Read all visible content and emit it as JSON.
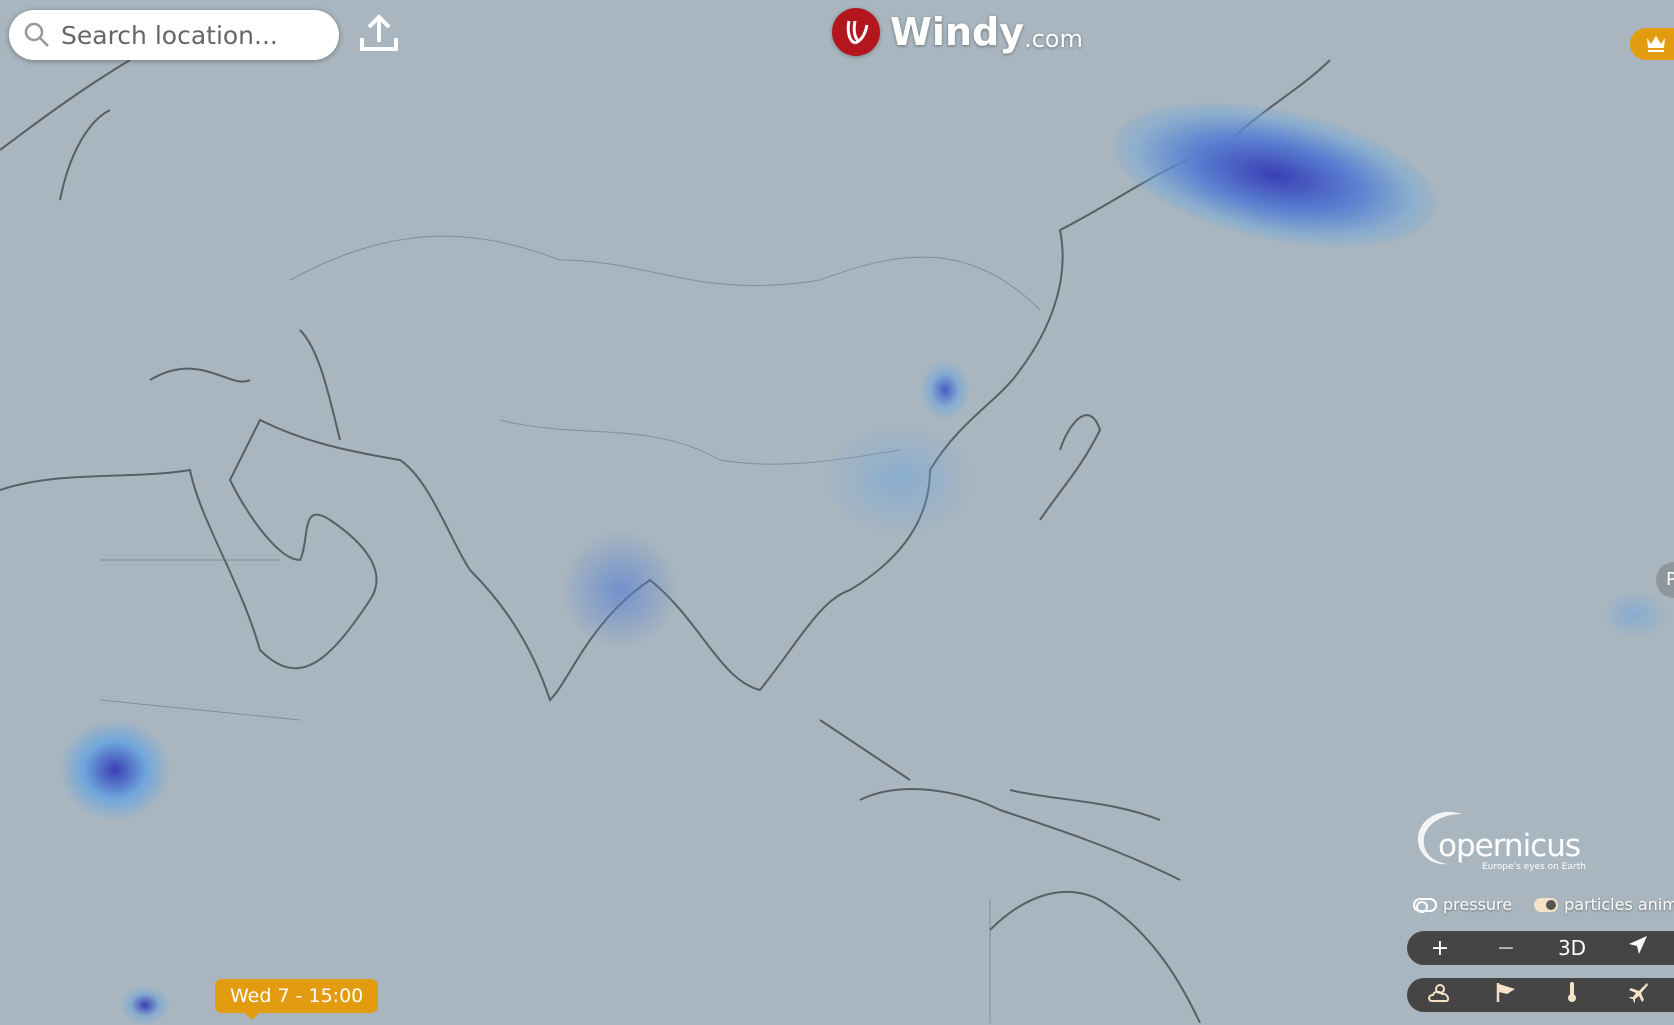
{
  "search": {
    "placeholder": "Search location...",
    "icon": "search-icon"
  },
  "header": {
    "brand": "Windy",
    "brand_suffix": ".com",
    "brand_color": "#b3161c"
  },
  "premium": {
    "icon": "crown-icon",
    "color": "#e39b0f"
  },
  "side_tab": {
    "label": "P"
  },
  "timeline": {
    "current": "Wed 7 - 15:00"
  },
  "attribution": {
    "name": "opernicus",
    "tagline": "Europe's eyes on Earth"
  },
  "toggles": [
    {
      "label": "pressure",
      "on": false
    },
    {
      "label": "particles animation",
      "on": true
    }
  ],
  "map_controls": {
    "zoom_in": "+",
    "zoom_out": "−",
    "three_d": "3D",
    "locate_icon": "location-arrow-icon"
  },
  "layer_buttons": [
    {
      "icon": "weather-cloud-sun-icon"
    },
    {
      "icon": "windsock-icon"
    },
    {
      "icon": "thermometer-icon"
    },
    {
      "icon": "airplane-icon"
    }
  ],
  "colors": {
    "map_bg": "#a9b6bf",
    "rain_light": "#6fa6dc",
    "rain_heavy": "#3a3fb4",
    "accent": "#e39b0f"
  }
}
